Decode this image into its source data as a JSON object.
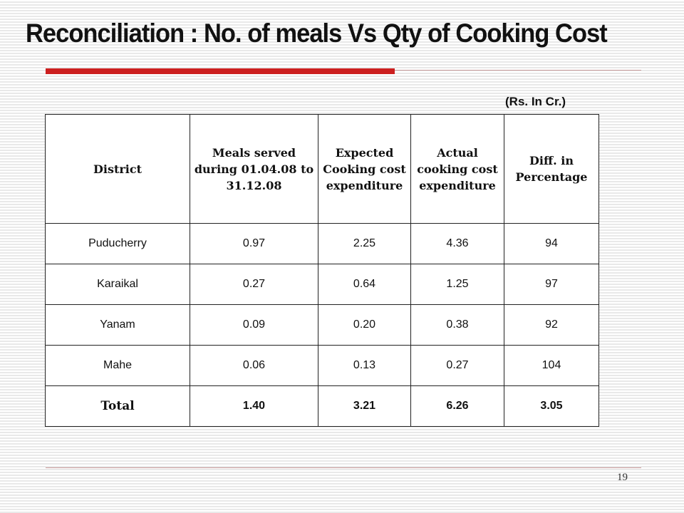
{
  "slide": {
    "title": "Reconciliation : No. of meals Vs Qty of Cooking Cost",
    "unit_note": "(Rs. In Cr.)",
    "page_number": "19",
    "accent_color": "#cc1f1f"
  },
  "table": {
    "headers": [
      "District",
      "Meals served during 01.04.08 to 31.12.08",
      "Expected Cooking cost expenditure",
      "Actual cooking cost expenditure",
      "Diff. in Percentage"
    ],
    "rows": [
      [
        "Puducherry",
        "0.97",
        "2.25",
        "4.36",
        "94"
      ],
      [
        "Karaikal",
        "0.27",
        "0.64",
        "1.25",
        "97"
      ],
      [
        "Yanam",
        "0.09",
        "0.20",
        "0.38",
        "92"
      ],
      [
        "Mahe",
        "0.06",
        "0.13",
        "0.27",
        "104"
      ]
    ],
    "total": [
      "Total",
      "1.40",
      "3.21",
      "6.26",
      "3.05"
    ]
  }
}
